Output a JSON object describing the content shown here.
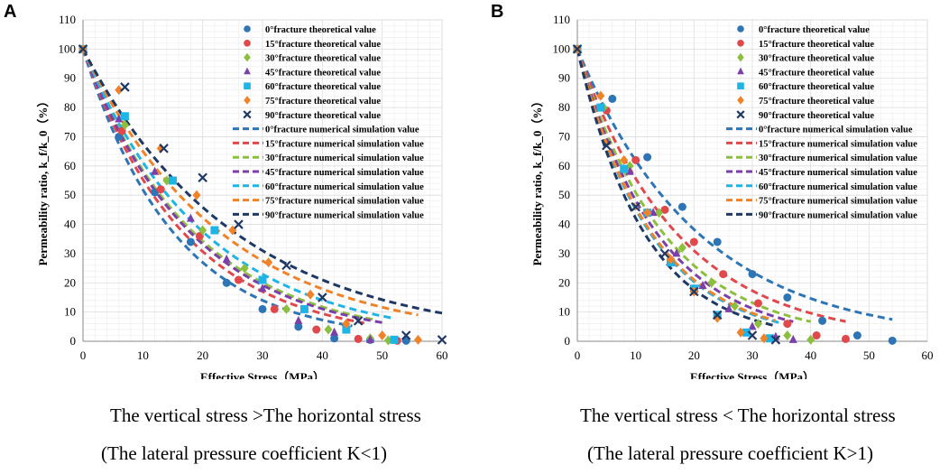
{
  "captions": {
    "a_line1": "The vertical stress >The horizontal stress",
    "a_line2": "(The lateral pressure coefficient K<1)",
    "b_line1": "The vertical stress < The horizontal stress",
    "b_line2": "(The lateral pressure coefficient K>1)"
  },
  "colors": {
    "0": "#2E75B6",
    "15": "#E0484B",
    "30": "#8DBF3F",
    "45": "#7B3FA8",
    "60": "#1EB4E6",
    "75": "#F08228",
    "90": "#1F3864"
  },
  "chart_data": [
    {
      "panel": "A",
      "type": "scatter",
      "xlabel": "Effective Stress（MPa）",
      "ylabel": "Permeability ratio, k_f/k_0（%）",
      "xlim": [
        0,
        60
      ],
      "ylim": [
        0,
        110
      ],
      "xticks": [
        0,
        10,
        20,
        30,
        40,
        50,
        60
      ],
      "yticks": [
        0,
        10,
        20,
        30,
        40,
        50,
        60,
        70,
        80,
        90,
        100,
        110
      ],
      "legend_position": "top-right",
      "series": [
        {
          "angle": "0",
          "name": "0°fracture theoretical value",
          "marker": "circle",
          "points": [
            [
              0,
              100
            ],
            [
              6,
              70
            ],
            [
              12,
              51
            ],
            [
              18,
              34
            ],
            [
              24,
              20
            ],
            [
              30,
              11
            ],
            [
              36,
              5
            ],
            [
              42,
              1
            ],
            [
              48,
              0.5
            ],
            [
              54,
              0.2
            ]
          ],
          "sim_name": "0°fracture numerical simulation value",
          "sim_end": 45
        },
        {
          "angle": "15",
          "name": "15°fracture theoretical value",
          "marker": "circle",
          "points": [
            [
              0,
              100
            ],
            [
              6.5,
              72
            ],
            [
              13,
              52
            ],
            [
              19.5,
              36
            ],
            [
              26,
              21
            ],
            [
              32,
              11
            ],
            [
              39,
              4
            ],
            [
              46,
              0.8
            ],
            [
              52.5,
              0.2
            ]
          ],
          "sim_name": "15°fracture numerical simulation value",
          "sim_end": 47
        },
        {
          "angle": "30",
          "name": "30°fracture theoretical value",
          "marker": "diamond",
          "points": [
            [
              0,
              100
            ],
            [
              7,
              74
            ],
            [
              14,
              55
            ],
            [
              20,
              38
            ],
            [
              27,
              25
            ],
            [
              34,
              11
            ],
            [
              41,
              4
            ],
            [
              48,
              1
            ],
            [
              51,
              0.3
            ]
          ],
          "sim_name": "30°fracture numerical simulation value",
          "sim_end": 49
        },
        {
          "angle": "45",
          "name": "45°fracture theoretical value",
          "marker": "triangle",
          "points": [
            [
              0,
              100
            ],
            [
              6,
              76
            ],
            [
              12,
              58
            ],
            [
              18,
              42
            ],
            [
              24,
              28
            ],
            [
              30,
              18
            ],
            [
              36,
              7
            ],
            [
              42,
              3
            ],
            [
              48,
              0.5
            ]
          ],
          "sim_name": "45°fracture numerical simulation value",
          "sim_end": 50
        },
        {
          "angle": "60",
          "name": "60°fracture theoretical value",
          "marker": "square",
          "points": [
            [
              0,
              100
            ],
            [
              7,
              77
            ],
            [
              15,
              55
            ],
            [
              22,
              38
            ],
            [
              30,
              21
            ],
            [
              37,
              11
            ],
            [
              44,
              4
            ],
            [
              52,
              0.5
            ]
          ],
          "sim_name": "60°fracture numerical simulation value",
          "sim_end": 52
        },
        {
          "angle": "75",
          "name": "75°fracture theoretical value",
          "marker": "diamond",
          "points": [
            [
              0,
              100
            ],
            [
              6,
              86
            ],
            [
              13,
              66
            ],
            [
              19,
              50
            ],
            [
              25,
              38
            ],
            [
              31,
              27
            ],
            [
              38,
              16
            ],
            [
              44,
              6
            ],
            [
              50,
              2
            ],
            [
              56,
              0.5
            ]
          ],
          "sim_name": "75°fracture numerical simulation value",
          "sim_end": 56
        },
        {
          "angle": "90",
          "name": "90°fracture theoretical value",
          "marker": "x",
          "points": [
            [
              0,
              100
            ],
            [
              7,
              87
            ],
            [
              13.5,
              66
            ],
            [
              20,
              56
            ],
            [
              26,
              40
            ],
            [
              34,
              26
            ],
            [
              40,
              15
            ],
            [
              46,
              7
            ],
            [
              54,
              2
            ],
            [
              60,
              0.5
            ]
          ],
          "sim_name": "90°fracture numerical simulation value",
          "sim_end": 60
        }
      ]
    },
    {
      "panel": "B",
      "type": "scatter",
      "xlabel": "Effective Stress（MPa）",
      "ylabel": "Permeability ratio, k_f/k_0（%）",
      "xlim": [
        0,
        60
      ],
      "ylim": [
        0,
        110
      ],
      "xticks": [
        0,
        10,
        20,
        30,
        40,
        50,
        60
      ],
      "yticks": [
        0,
        10,
        20,
        30,
        40,
        50,
        60,
        70,
        80,
        90,
        100,
        110
      ],
      "legend_position": "top-right",
      "series": [
        {
          "angle": "0",
          "name": "0°fracture theoretical value",
          "marker": "circle",
          "points": [
            [
              0,
              100
            ],
            [
              6,
              83
            ],
            [
              12,
              63
            ],
            [
              18,
              46
            ],
            [
              24,
              34
            ],
            [
              30,
              23
            ],
            [
              36,
              15
            ],
            [
              42,
              7
            ],
            [
              48,
              2
            ],
            [
              54,
              0.2
            ]
          ],
          "sim_name": "0°fracture numerical simulation value",
          "sim_end": 54
        },
        {
          "angle": "15",
          "name": "15°fracture theoretical value",
          "marker": "circle",
          "points": [
            [
              0,
              100
            ],
            [
              5,
              79
            ],
            [
              10,
              62
            ],
            [
              15,
              45
            ],
            [
              20,
              34
            ],
            [
              25,
              23
            ],
            [
              31,
              13
            ],
            [
              36,
              6
            ],
            [
              41,
              2
            ],
            [
              46,
              0.8
            ]
          ],
          "sim_name": "15°fracture numerical simulation value",
          "sim_end": 46
        },
        {
          "angle": "30",
          "name": "30°fracture theoretical value",
          "marker": "diamond",
          "points": [
            [
              0,
              100
            ],
            [
              4.5,
              80
            ],
            [
              9,
              60
            ],
            [
              14,
              44
            ],
            [
              18,
              32
            ],
            [
              23,
              20
            ],
            [
              27,
              12
            ],
            [
              31,
              6
            ],
            [
              36,
              2
            ],
            [
              40,
              0.5
            ]
          ],
          "sim_name": "30°fracture numerical simulation value",
          "sim_end": 40
        },
        {
          "angle": "45",
          "name": "45°fracture theoretical value",
          "marker": "triangle",
          "points": [
            [
              0,
              100
            ],
            [
              4,
              80
            ],
            [
              9,
              58
            ],
            [
              13,
              44
            ],
            [
              17,
              30
            ],
            [
              21.5,
              19
            ],
            [
              26,
              11
            ],
            [
              30,
              5
            ],
            [
              34,
              1.5
            ],
            [
              37,
              0.5
            ]
          ],
          "sim_name": "45°fracture numerical simulation value",
          "sim_end": 37
        },
        {
          "angle": "60",
          "name": "60°fracture theoretical value",
          "marker": "square",
          "points": [
            [
              0,
              100
            ],
            [
              4,
              80
            ],
            [
              8,
              59
            ],
            [
              12,
              44
            ],
            [
              16,
              27
            ],
            [
              20,
              18
            ],
            [
              24,
              9
            ],
            [
              29,
              3
            ],
            [
              33,
              1
            ]
          ],
          "sim_name": "60°fracture numerical simulation value",
          "sim_end": 35
        },
        {
          "angle": "75",
          "name": "75°fracture theoretical value",
          "marker": "diamond",
          "points": [
            [
              0,
              100
            ],
            [
              4,
              84
            ],
            [
              8,
              62
            ],
            [
              12,
              44
            ],
            [
              16,
              28
            ],
            [
              20,
              17
            ],
            [
              24,
              8
            ],
            [
              28,
              3
            ],
            [
              32,
              1
            ]
          ],
          "sim_name": "75°fracture numerical simulation value",
          "sim_end": 34
        },
        {
          "angle": "90",
          "name": "90°fracture theoretical value",
          "marker": "x",
          "points": [
            [
              0,
              100
            ],
            [
              5,
              67
            ],
            [
              10,
              46
            ],
            [
              15,
              30
            ],
            [
              20,
              17
            ],
            [
              24,
              9
            ],
            [
              30,
              2
            ],
            [
              34,
              0.5
            ]
          ],
          "sim_name": "90°fracture numerical simulation value",
          "sim_end": 34
        }
      ]
    }
  ]
}
